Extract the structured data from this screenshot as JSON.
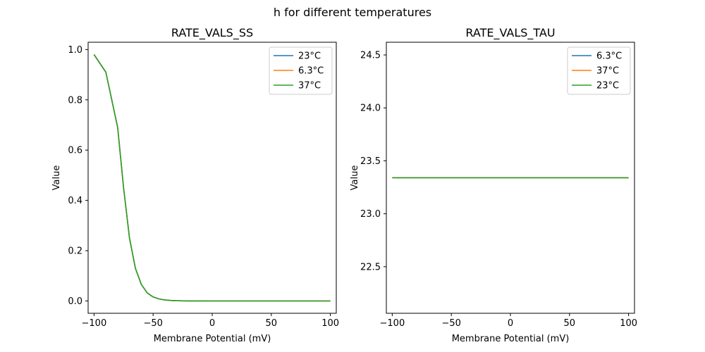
{
  "figure": {
    "suptitle": "h for different temperatures"
  },
  "chart_data": [
    {
      "type": "line",
      "title": "RATE_VALS_SS",
      "xlabel": "Membrane Potential (mV)",
      "ylabel": "Value",
      "xlim": [
        -105,
        105
      ],
      "ylim": [
        -0.049,
        1.029
      ],
      "xticks": [
        -100,
        -50,
        0,
        50,
        100
      ],
      "xtick_labels": [
        "−100",
        "−50",
        "0",
        "50",
        "100"
      ],
      "yticks": [
        0.0,
        0.2,
        0.4,
        0.6,
        0.8,
        1.0
      ],
      "ytick_labels": [
        "0.0",
        "0.2",
        "0.4",
        "0.6",
        "0.8",
        "1.0"
      ],
      "legend_position": "top-right",
      "x": [
        -100,
        -90,
        -80,
        -75,
        -70,
        -65,
        -60,
        -55,
        -50,
        -45,
        -40,
        -35,
        -30,
        -25,
        -20,
        -10,
        0,
        25,
        50,
        75,
        100
      ],
      "series": [
        {
          "name": "23°C",
          "color": "#1f77b4",
          "values": [
            0.98,
            0.91,
            0.69,
            0.45,
            0.25,
            0.13,
            0.066,
            0.032,
            0.016,
            0.008,
            0.004,
            0.002,
            0.001,
            0.0005,
            0.0002,
            0.0001,
            0.0,
            0.0,
            0.0,
            0.0,
            0.0
          ]
        },
        {
          "name": "6.3°C",
          "color": "#ff7f0e",
          "values": [
            0.98,
            0.91,
            0.69,
            0.45,
            0.25,
            0.13,
            0.066,
            0.032,
            0.016,
            0.008,
            0.004,
            0.002,
            0.001,
            0.0005,
            0.0002,
            0.0001,
            0.0,
            0.0,
            0.0,
            0.0,
            0.0
          ]
        },
        {
          "name": "37°C",
          "color": "#2ca02c",
          "values": [
            0.98,
            0.91,
            0.69,
            0.45,
            0.25,
            0.13,
            0.066,
            0.032,
            0.016,
            0.008,
            0.004,
            0.002,
            0.001,
            0.0005,
            0.0002,
            0.0001,
            0.0,
            0.0,
            0.0,
            0.0,
            0.0
          ]
        }
      ]
    },
    {
      "type": "line",
      "title": "RATE_VALS_TAU",
      "xlabel": "Membrane Potential (mV)",
      "ylabel": "Value",
      "xlim": [
        -105,
        105
      ],
      "ylim": [
        22.06,
        24.62
      ],
      "xticks": [
        -100,
        -50,
        0,
        50,
        100
      ],
      "xtick_labels": [
        "−100",
        "−50",
        "0",
        "50",
        "100"
      ],
      "yticks": [
        22.5,
        23.0,
        23.5,
        24.0,
        24.5
      ],
      "ytick_labels": [
        "22.5",
        "23.0",
        "23.5",
        "24.0",
        "24.5"
      ],
      "legend_position": "top-right",
      "x": [
        -100,
        100
      ],
      "series": [
        {
          "name": "6.3°C",
          "color": "#1f77b4",
          "values": [
            23.34,
            23.34
          ]
        },
        {
          "name": "37°C",
          "color": "#ff7f0e",
          "values": [
            23.34,
            23.34
          ]
        },
        {
          "name": "23°C",
          "color": "#2ca02c",
          "values": [
            23.34,
            23.34
          ]
        }
      ]
    }
  ]
}
